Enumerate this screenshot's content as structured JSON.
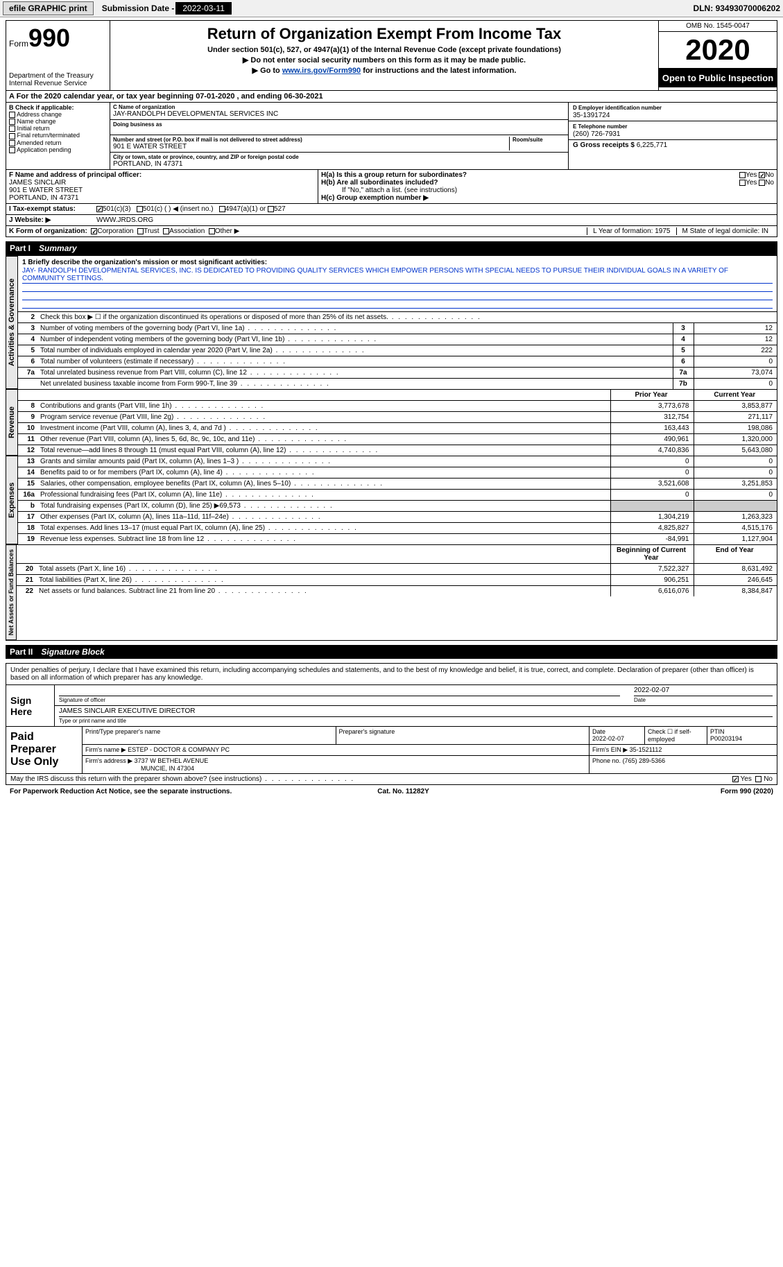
{
  "top": {
    "efile": "efile GRAPHIC print",
    "sub_label": "Submission Date -",
    "sub_date": "2022-03-11",
    "dln_label": "DLN:",
    "dln": "93493070006202"
  },
  "header": {
    "form": "Form",
    "f990": "990",
    "dept": "Department of the Treasury\nInternal Revenue Service",
    "title": "Return of Organization Exempt From Income Tax",
    "sub1": "Under section 501(c), 527, or 4947(a)(1) of the Internal Revenue Code (except private foundations)",
    "sub2": "▶ Do not enter social security numbers on this form as it may be made public.",
    "sub3_pre": "▶ Go to ",
    "sub3_link": "www.irs.gov/Form990",
    "sub3_post": " for instructions and the latest information.",
    "omb": "OMB No. 1545-0047",
    "year": "2020",
    "otp": "Open to Public Inspection"
  },
  "period": "A For the 2020 calendar year, or tax year beginning 07-01-2020    , and ending 06-30-2021",
  "B": {
    "label": "B Check if applicable:",
    "items": [
      "Address change",
      "Name change",
      "Initial return",
      "Final return/terminated",
      "Amended return",
      "Application pending"
    ]
  },
  "C": {
    "name_lbl": "C Name of organization",
    "name": "JAY-RANDOLPH DEVELOPMENTAL SERVICES INC",
    "dba_lbl": "Doing business as",
    "dba": "",
    "street_lbl": "Number and street (or P.O. box if mail is not delivered to street address)",
    "street": "901 E WATER STREET",
    "suite_lbl": "Room/suite",
    "suite": "",
    "city_lbl": "City or town, state or province, country, and ZIP or foreign postal code",
    "city": "PORTLAND, IN  47371"
  },
  "right": {
    "d_lbl": "D Employer identification number",
    "d": "35-1391724",
    "e_lbl": "E Telephone number",
    "e": "(260) 726-7931",
    "g_lbl": "G Gross receipts $",
    "g": "6,225,771"
  },
  "F": {
    "lbl": "F Name and address of principal officer:",
    "name": "JAMES SINCLAIR",
    "addr1": "901 E WATER STREET",
    "addr2": "PORTLAND, IN  47371"
  },
  "H": {
    "a": "H(a)  Is this a group return for subordinates?",
    "a_yes": "Yes",
    "a_no": "No",
    "b": "H(b)  Are all subordinates included?",
    "b_yes": "Yes",
    "b_no": "No",
    "b_note": "If \"No,\" attach a list. (see instructions)",
    "c": "H(c)  Group exemption number ▶"
  },
  "I": {
    "lbl": "I  Tax-exempt status:",
    "o1": "501(c)(3)",
    "o2": "501(c) (   ) ◀ (insert no.)",
    "o3": "4947(a)(1) or",
    "o4": "527"
  },
  "J": {
    "lbl": "J  Website: ▶",
    "val": "WWW.JRDS.ORG"
  },
  "K": {
    "lbl": "K Form of organization:",
    "o1": "Corporation",
    "o2": "Trust",
    "o3": "Association",
    "o4": "Other ▶",
    "L": "L Year of formation: 1975",
    "M": "M State of legal domicile: IN"
  },
  "part1": {
    "label": "Part I",
    "title": "Summary"
  },
  "mission": {
    "lbl": "1  Briefly describe the organization's mission or most significant activities:",
    "text": "JAY- RANDOLPH DEVELOPMENTAL SERVICES, INC. IS DEDICATED TO PROVIDING QUALITY SERVICES WHICH EMPOWER PERSONS WITH SPECIAL NEEDS TO PURSUE THEIR INDIVIDUAL GOALS IN A VARIETY OF COMMUNITY SETTINGS."
  },
  "gov_rows": [
    {
      "n": "2",
      "d": "Check this box ▶ ☐  if the organization discontinued its operations or disposed of more than 25% of its net assets.",
      "box": "",
      "v": ""
    },
    {
      "n": "3",
      "d": "Number of voting members of the governing body (Part VI, line 1a)",
      "box": "3",
      "v": "12"
    },
    {
      "n": "4",
      "d": "Number of independent voting members of the governing body (Part VI, line 1b)",
      "box": "4",
      "v": "12"
    },
    {
      "n": "5",
      "d": "Total number of individuals employed in calendar year 2020 (Part V, line 2a)",
      "box": "5",
      "v": "222"
    },
    {
      "n": "6",
      "d": "Total number of volunteers (estimate if necessary)",
      "box": "6",
      "v": "0"
    },
    {
      "n": "7a",
      "d": "Total unrelated business revenue from Part VIII, column (C), line 12",
      "box": "7a",
      "v": "73,074"
    },
    {
      "n": "",
      "d": "Net unrelated business taxable income from Form 990-T, line 39",
      "box": "7b",
      "v": "0"
    }
  ],
  "rev_head": {
    "prior": "Prior Year",
    "curr": "Current Year"
  },
  "rev_rows": [
    {
      "n": "8",
      "d": "Contributions and grants (Part VIII, line 1h)",
      "p": "3,773,678",
      "c": "3,853,877"
    },
    {
      "n": "9",
      "d": "Program service revenue (Part VIII, line 2g)",
      "p": "312,754",
      "c": "271,117"
    },
    {
      "n": "10",
      "d": "Investment income (Part VIII, column (A), lines 3, 4, and 7d )",
      "p": "163,443",
      "c": "198,086"
    },
    {
      "n": "11",
      "d": "Other revenue (Part VIII, column (A), lines 5, 6d, 8c, 9c, 10c, and 11e)",
      "p": "490,961",
      "c": "1,320,000"
    },
    {
      "n": "12",
      "d": "Total revenue—add lines 8 through 11 (must equal Part VIII, column (A), line 12)",
      "p": "4,740,836",
      "c": "5,643,080"
    }
  ],
  "exp_rows": [
    {
      "n": "13",
      "d": "Grants and similar amounts paid (Part IX, column (A), lines 1–3 )",
      "p": "0",
      "c": "0"
    },
    {
      "n": "14",
      "d": "Benefits paid to or for members (Part IX, column (A), line 4)",
      "p": "0",
      "c": "0"
    },
    {
      "n": "15",
      "d": "Salaries, other compensation, employee benefits (Part IX, column (A), lines 5–10)",
      "p": "3,521,608",
      "c": "3,251,853"
    },
    {
      "n": "16a",
      "d": "Professional fundraising fees (Part IX, column (A), line 11e)",
      "p": "0",
      "c": "0"
    },
    {
      "n": "b",
      "d": "Total fundraising expenses (Part IX, column (D), line 25) ▶69,573",
      "p": "",
      "c": "",
      "shade": true
    },
    {
      "n": "17",
      "d": "Other expenses (Part IX, column (A), lines 11a–11d, 11f–24e)",
      "p": "1,304,219",
      "c": "1,263,323"
    },
    {
      "n": "18",
      "d": "Total expenses. Add lines 13–17 (must equal Part IX, column (A), line 25)",
      "p": "4,825,827",
      "c": "4,515,176"
    },
    {
      "n": "19",
      "d": "Revenue less expenses. Subtract line 18 from line 12",
      "p": "-84,991",
      "c": "1,127,904"
    }
  ],
  "net_head": {
    "prior": "Beginning of Current Year",
    "curr": "End of Year"
  },
  "net_rows": [
    {
      "n": "20",
      "d": "Total assets (Part X, line 16)",
      "p": "7,522,327",
      "c": "8,631,492"
    },
    {
      "n": "21",
      "d": "Total liabilities (Part X, line 26)",
      "p": "906,251",
      "c": "246,645"
    },
    {
      "n": "22",
      "d": "Net assets or fund balances. Subtract line 21 from line 20",
      "p": "6,616,076",
      "c": "8,384,847"
    }
  ],
  "sides": {
    "gov": "Activities & Governance",
    "rev": "Revenue",
    "exp": "Expenses",
    "net": "Net Assets or Fund Balances"
  },
  "part2": {
    "label": "Part II",
    "title": "Signature Block"
  },
  "decl": "Under penalties of perjury, I declare that I have examined this return, including accompanying schedules and statements, and to the best of my knowledge and belief, it is true, correct, and complete. Declaration of preparer (other than officer) is based on all information of which preparer has any knowledge.",
  "sign": {
    "side": "Sign Here",
    "sig_lbl": "Signature of officer",
    "date": "2022-02-07",
    "date_lbl": "Date",
    "name": "JAMES SINCLAIR  EXECUTIVE DIRECTOR",
    "name_lbl": "Type or print name and title"
  },
  "prep": {
    "side": "Paid Preparer Use Only",
    "r1": {
      "c1_lbl": "Print/Type preparer's name",
      "c1": "",
      "c2_lbl": "Preparer's signature",
      "c2": "",
      "c3_lbl": "Date",
      "c3": "2022-02-07",
      "c4_lbl": "Check ☐ if self-employed",
      "c5_lbl": "PTIN",
      "c5": "P00203194"
    },
    "r2": {
      "c1_lbl": "Firm's name   ▶",
      "c1": "ESTEP - DOCTOR & COMPANY PC",
      "c2_lbl": "Firm's EIN ▶",
      "c2": "35-1521112"
    },
    "r3": {
      "c1_lbl": "Firm's address ▶",
      "c1": "3737 W BETHEL AVENUE",
      "c1b": "MUNCIE, IN  47304",
      "c2_lbl": "Phone no.",
      "c2": "(765) 289-5366"
    }
  },
  "discuss": {
    "q": "May the IRS discuss this return with the preparer shown above? (see instructions)",
    "yes": "Yes",
    "no": "No"
  },
  "footer": {
    "left": "For Paperwork Reduction Act Notice, see the separate instructions.",
    "mid": "Cat. No. 11282Y",
    "right": "Form 990 (2020)"
  }
}
